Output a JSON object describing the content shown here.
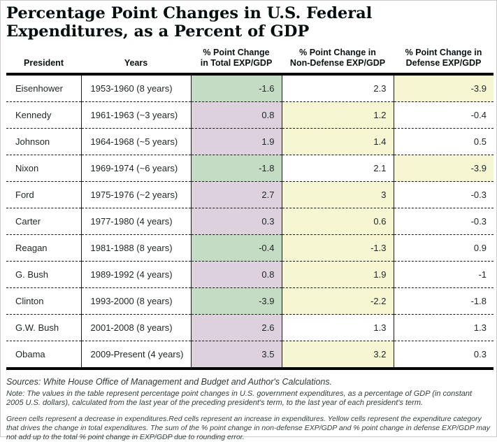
{
  "title": "Percentage Point Changes in U.S. Federal\nExpenditures, as a Percent of GDP",
  "colors": {
    "green": "#c5dcc4",
    "red": "#ddd1de",
    "yellow": "#f6f6d2",
    "white": "#ffffff"
  },
  "table": {
    "columns": [
      "President",
      "Years",
      "% Point Change\nin Total EXP/GDP",
      "% Point Change in\nNon-Defense EXP/GDP",
      "% Point Change in\nDefense EXP/GDP"
    ],
    "rows": [
      {
        "president": "Eisenhower",
        "years": "1953-1960 (8 years)",
        "cells": [
          {
            "value": "-1.6",
            "bg": "green"
          },
          {
            "value": "2.3",
            "bg": "white"
          },
          {
            "value": "-3.9",
            "bg": "yellow"
          }
        ]
      },
      {
        "president": "Kennedy",
        "years": "1961-1963 (~3 years)",
        "cells": [
          {
            "value": "0.8",
            "bg": "red"
          },
          {
            "value": "1.2",
            "bg": "yellow"
          },
          {
            "value": "-0.4",
            "bg": "white"
          }
        ]
      },
      {
        "president": "Johnson",
        "years": "1964-1968 (~5 years)",
        "cells": [
          {
            "value": "1.9",
            "bg": "red"
          },
          {
            "value": "1.4",
            "bg": "yellow"
          },
          {
            "value": "0.5",
            "bg": "white"
          }
        ]
      },
      {
        "president": "Nixon",
        "years": "1969-1974 (~6 years)",
        "cells": [
          {
            "value": "-1.8",
            "bg": "green"
          },
          {
            "value": "2.1",
            "bg": "white"
          },
          {
            "value": "-3.9",
            "bg": "yellow"
          }
        ]
      },
      {
        "president": "Ford",
        "years": "1975-1976 (~2 years)",
        "cells": [
          {
            "value": "2.7",
            "bg": "red"
          },
          {
            "value": "3",
            "bg": "yellow"
          },
          {
            "value": "-0.3",
            "bg": "white"
          }
        ]
      },
      {
        "president": "Carter",
        "years": "1977-1980 (4 years)",
        "cells": [
          {
            "value": "0.3",
            "bg": "red"
          },
          {
            "value": "0.6",
            "bg": "yellow"
          },
          {
            "value": "-0.3",
            "bg": "white"
          }
        ]
      },
      {
        "president": "Reagan",
        "years": "1981-1988 (8 years)",
        "cells": [
          {
            "value": "-0.4",
            "bg": "green"
          },
          {
            "value": "-1.3",
            "bg": "yellow"
          },
          {
            "value": "0.9",
            "bg": "white"
          }
        ]
      },
      {
        "president": "G. Bush",
        "years": "1989-1992 (4 years)",
        "cells": [
          {
            "value": "0.8",
            "bg": "red"
          },
          {
            "value": "1.9",
            "bg": "yellow"
          },
          {
            "value": "-1",
            "bg": "white"
          }
        ]
      },
      {
        "president": "Clinton",
        "years": "1993-2000 (8 years)",
        "cells": [
          {
            "value": "-3.9",
            "bg": "green"
          },
          {
            "value": "-2.2",
            "bg": "yellow"
          },
          {
            "value": "-1.8",
            "bg": "white"
          }
        ]
      },
      {
        "president": "G.W. Bush",
        "years": "2001-2008 (8 years)",
        "cells": [
          {
            "value": "2.6",
            "bg": "red"
          },
          {
            "value": "1.3",
            "bg": "white"
          },
          {
            "value": "1.3",
            "bg": "white"
          }
        ]
      },
      {
        "president": "Obama",
        "years": "2009-Present (4 years)",
        "cells": [
          {
            "value": "3.5",
            "bg": "red"
          },
          {
            "value": "3.2",
            "bg": "yellow"
          },
          {
            "value": "0.3",
            "bg": "white"
          }
        ]
      }
    ]
  },
  "footer": {
    "sources": "Sources: White House Office of Management and Budget and Author's Calculations.",
    "note": "Note: The values in the table represent percentage point changes in U.S. government expenditures, as a percentage of GDP (in constant 2005 U.S. dollars), calculated from the last year of the preceding president's term, to the last year of each president's term.",
    "legend": "Green cells represent a decrease in expenditures.Red cells represent an increase in expenditures. Yellow cells represent the expenditure category that drives the change in total expenditures. The sum of the % point change in non-defense EXP/GDP and % point change in defense EXP/GDP may not add up to the total % point change in EXP/GDP due to rounding error."
  },
  "chart_data": {
    "type": "table",
    "title": "Percentage Point Changes in U.S. Federal Expenditures, as a Percent of GDP",
    "columns": [
      "President",
      "Years",
      "% Point Change in Total EXP/GDP",
      "% Point Change in Non-Defense EXP/GDP",
      "% Point Change in Defense EXP/GDP"
    ],
    "rows": [
      [
        "Eisenhower",
        "1953-1960 (8 years)",
        -1.6,
        2.3,
        -3.9
      ],
      [
        "Kennedy",
        "1961-1963 (~3 years)",
        0.8,
        1.2,
        -0.4
      ],
      [
        "Johnson",
        "1964-1968 (~5 years)",
        1.9,
        1.4,
        0.5
      ],
      [
        "Nixon",
        "1969-1974 (~6 years)",
        -1.8,
        2.1,
        -3.9
      ],
      [
        "Ford",
        "1975-1976 (~2 years)",
        2.7,
        3.0,
        -0.3
      ],
      [
        "Carter",
        "1977-1980 (4 years)",
        0.3,
        0.6,
        -0.3
      ],
      [
        "Reagan",
        "1981-1988 (8 years)",
        -0.4,
        -1.3,
        0.9
      ],
      [
        "G. Bush",
        "1989-1992 (4 years)",
        0.8,
        1.9,
        -1.0
      ],
      [
        "Clinton",
        "1993-2000 (8 years)",
        -3.9,
        -2.2,
        -1.8
      ],
      [
        "G.W. Bush",
        "2001-2008 (8 years)",
        2.6,
        1.3,
        1.3
      ],
      [
        "Obama",
        "2009-Present (4 years)",
        3.5,
        3.2,
        0.3
      ]
    ],
    "cell_color_semantics": {
      "green": "decrease in expenditures (total column)",
      "red": "increase in expenditures (total column)",
      "yellow": "expenditure category driving the change in total expenditures"
    },
    "legend_position": "below table"
  }
}
